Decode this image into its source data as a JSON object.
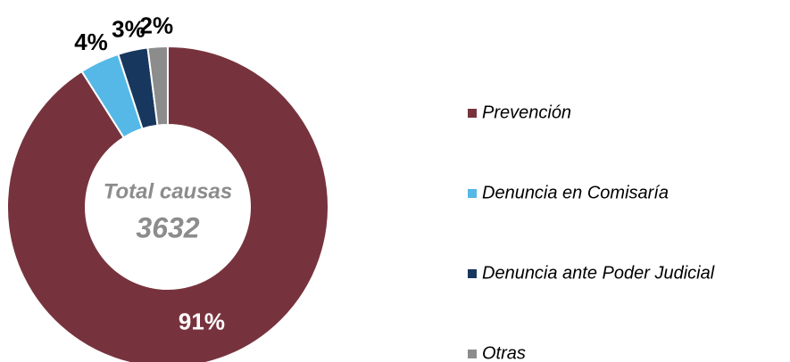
{
  "chart_data": {
    "type": "donut",
    "categories": [
      "Prevención",
      "Denuncia en Comisaría",
      "Denuncia ante Poder Judicial",
      "Otras"
    ],
    "values": [
      91,
      4,
      3,
      2
    ],
    "value_labels": [
      "91%",
      "4%",
      "3%",
      "2%"
    ],
    "colors": [
      "#77333d",
      "#55b8e6",
      "#17375e",
      "#8c8c8c"
    ],
    "center_label": "Total causas",
    "center_value": 3632,
    "legend": "right"
  }
}
